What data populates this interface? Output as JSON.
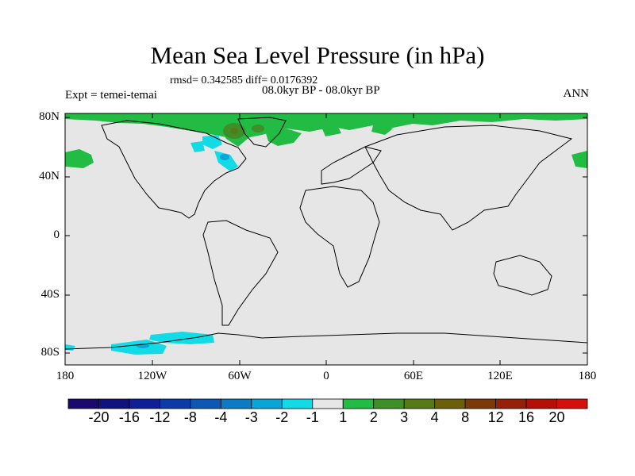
{
  "map": {
    "title": "Mean Sea Level Pressure (in hPa)",
    "stats": "rmsd= 0.342585 diff= 0.0176392",
    "subtitle": "08.0kyr BP - 08.0kyr BP",
    "experiment": "Expt = temei-temai",
    "season": "ANN",
    "lat_labels": [
      "80N",
      "40N",
      "0",
      "40S",
      "80S"
    ],
    "lon_labels": [
      "180",
      "120W",
      "60W",
      "0",
      "60E",
      "120E",
      "180"
    ],
    "background_color": "#e6e6e6"
  },
  "colorbar": {
    "labels": [
      "-20",
      "-16",
      "-12",
      "-8",
      "-4",
      "-3",
      "-2",
      "-1",
      "1",
      "2",
      "3",
      "4",
      "8",
      "12",
      "16",
      "20"
    ],
    "colors": [
      "#1a0a6e",
      "#13117e",
      "#0f1f96",
      "#0d3aa6",
      "#0c58b4",
      "#0b7cc4",
      "#0aa5d8",
      "#13dbe6",
      "#e6e6e6",
      "#22bb44",
      "#3f8f28",
      "#567a16",
      "#6b5f0c",
      "#7c3a08",
      "#962008",
      "#b41008",
      "#d50e0e"
    ]
  }
}
